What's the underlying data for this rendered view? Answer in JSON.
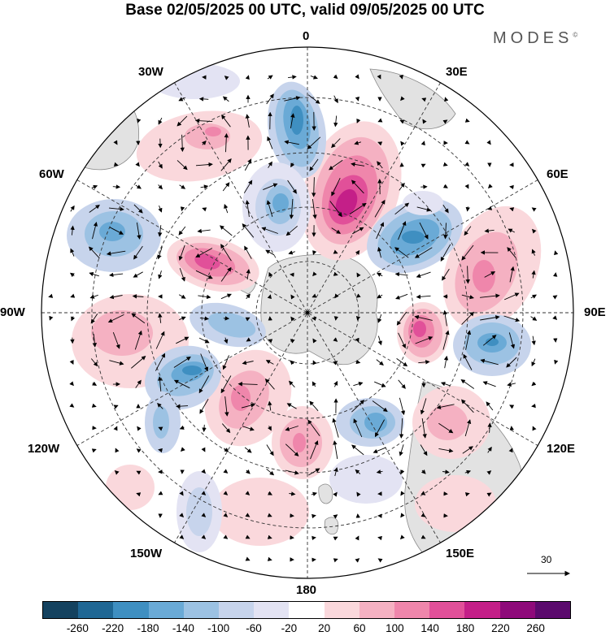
{
  "title": "Base 02/05/2025 00 UTC, valid 09/05/2025 00 UTC",
  "brand": "MODES",
  "brand_mark": "©",
  "longitude_labels": {
    "lon_0": "0",
    "lon_30e": "30E",
    "lon_60e": "60E",
    "lon_90e": "90E",
    "lon_120e": "120E",
    "lon_150e": "150E",
    "lon_180": "180",
    "lon_150w": "150W",
    "lon_120w": "120W",
    "lon_90w": "90W",
    "lon_60w": "60W",
    "lon_30w": "30W"
  },
  "reference_vector": {
    "label": "30"
  },
  "colorbar": {
    "ticks": [
      "-260",
      "-220",
      "-180",
      "-140",
      "-100",
      "-60",
      "-20",
      "20",
      "60",
      "100",
      "140",
      "180",
      "220",
      "260"
    ],
    "colors": [
      "#14425f",
      "#1f6794",
      "#3f8fc1",
      "#6aaad6",
      "#9cc2e3",
      "#c7d4ec",
      "#e3e3f3",
      "#ffffff",
      "#fad8dc",
      "#f5b1c2",
      "#ef86ab",
      "#e15099",
      "#c41f88",
      "#8e0a7a",
      "#5b0a6d"
    ]
  },
  "icons": {
    "pole_marker": "dot-icon",
    "reference_arrow": "arrow-right-icon"
  }
}
